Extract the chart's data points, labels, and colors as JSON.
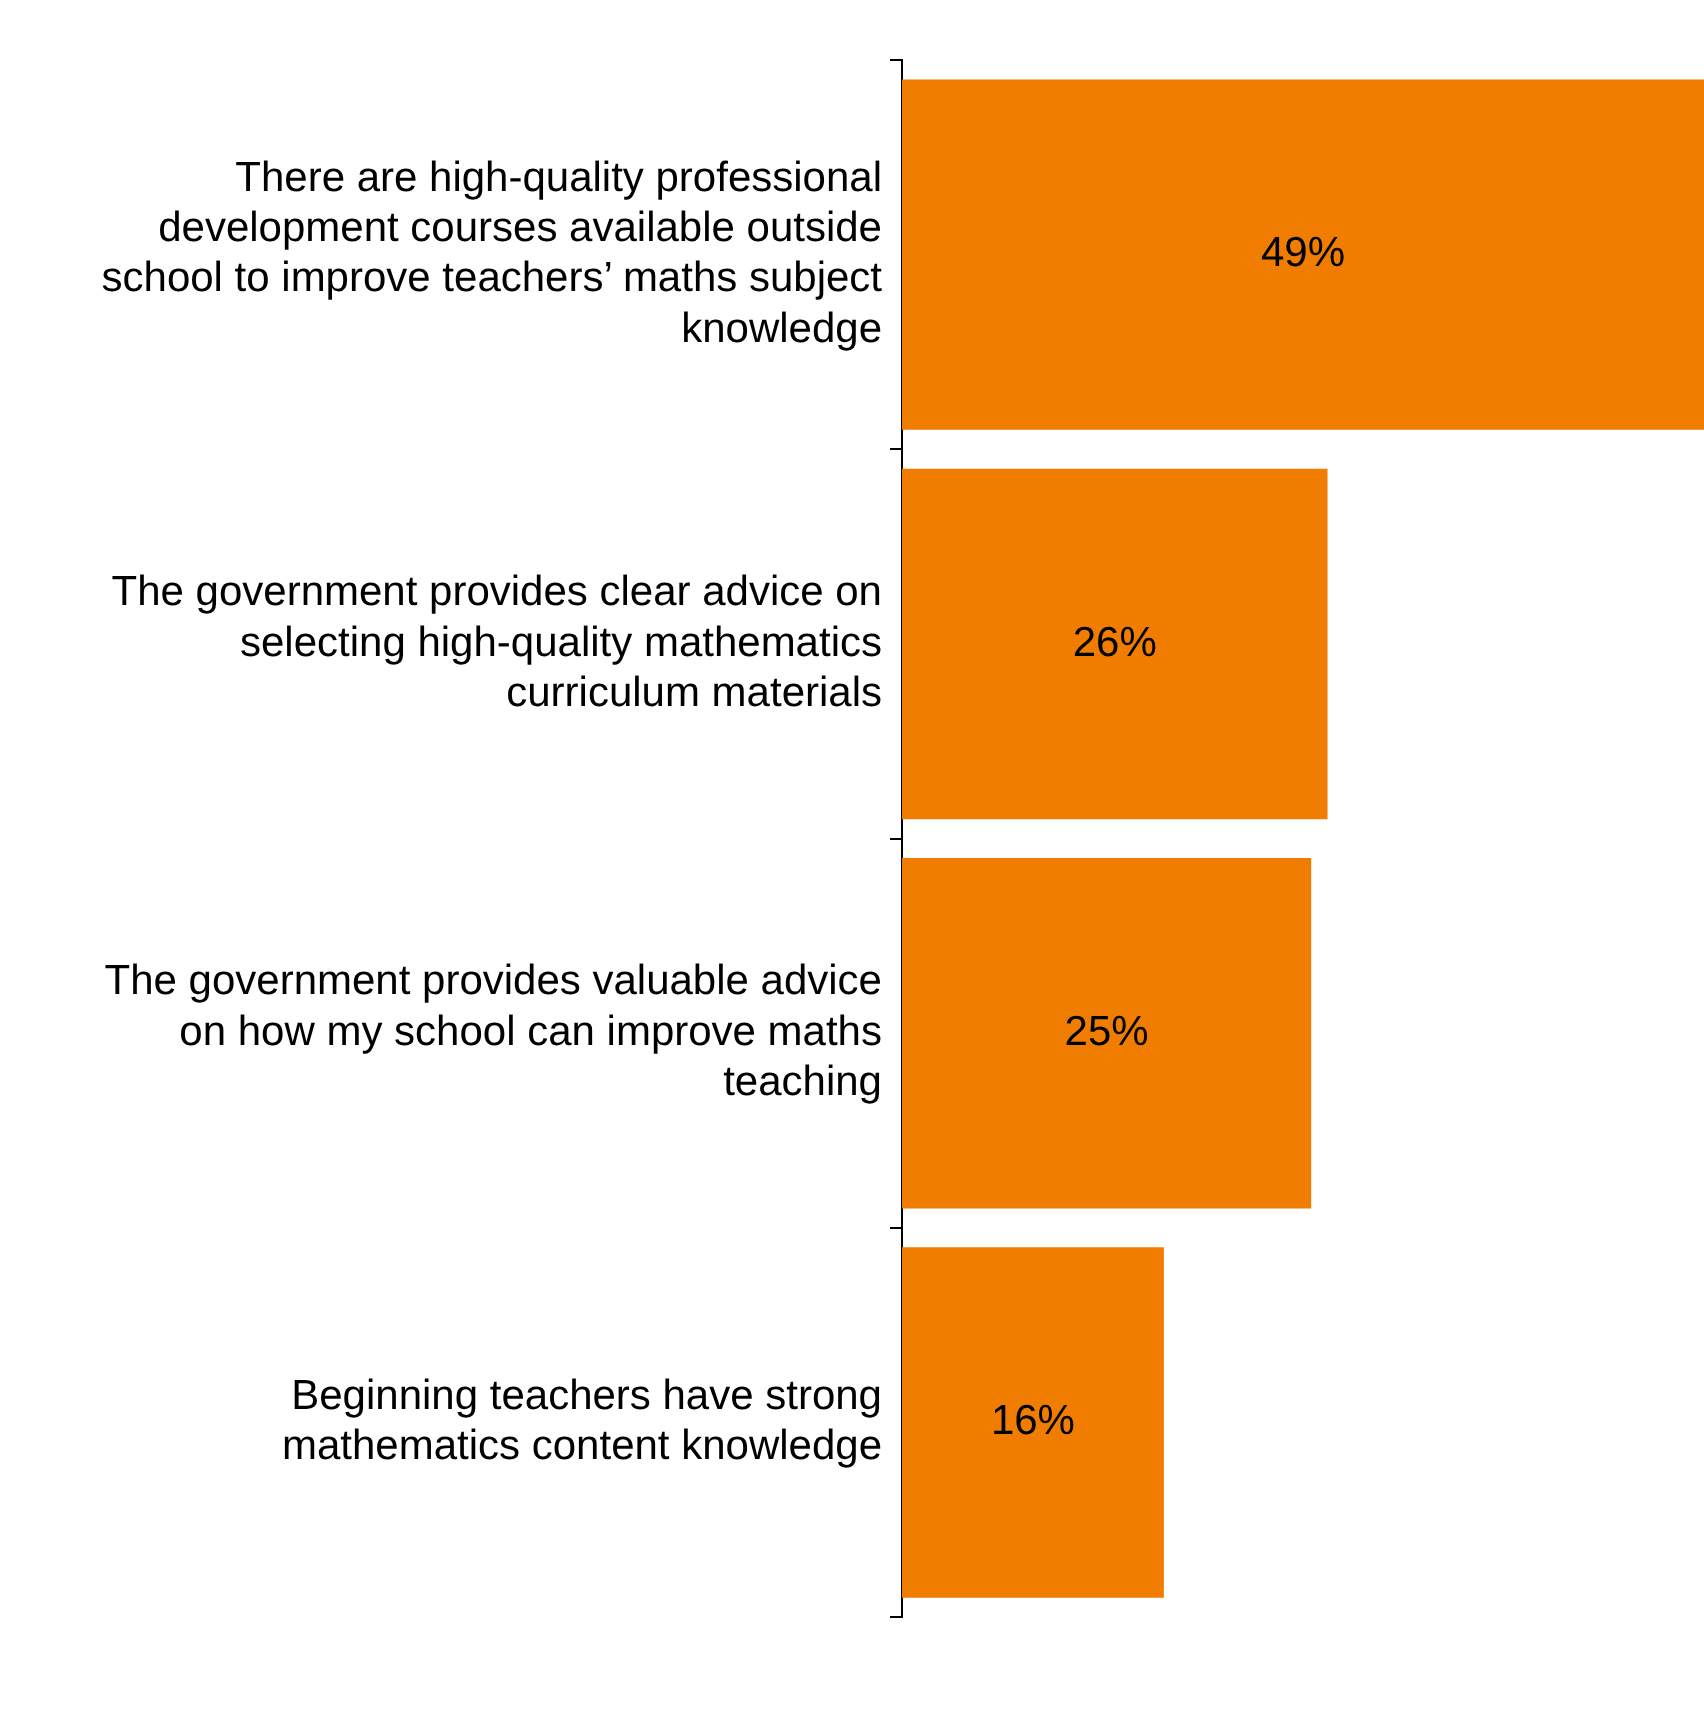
{
  "chart_data": {
    "type": "bar",
    "orientation": "horizontal",
    "categories": [
      "There are high-quality professional development courses available outside school to improve teachers’ maths subject knowledge",
      "The government provides clear advice on selecting high-quality mathematics curriculum materials",
      "The government provides valuable advice on how my school can improve maths teaching",
      "Beginning teachers have strong mathematics content knowledge"
    ],
    "values": [
      49,
      26,
      25,
      16
    ],
    "value_labels": [
      "49%",
      "26%",
      "25%",
      "16%"
    ],
    "color": "#f07c00",
    "grid": false,
    "legend": false
  }
}
